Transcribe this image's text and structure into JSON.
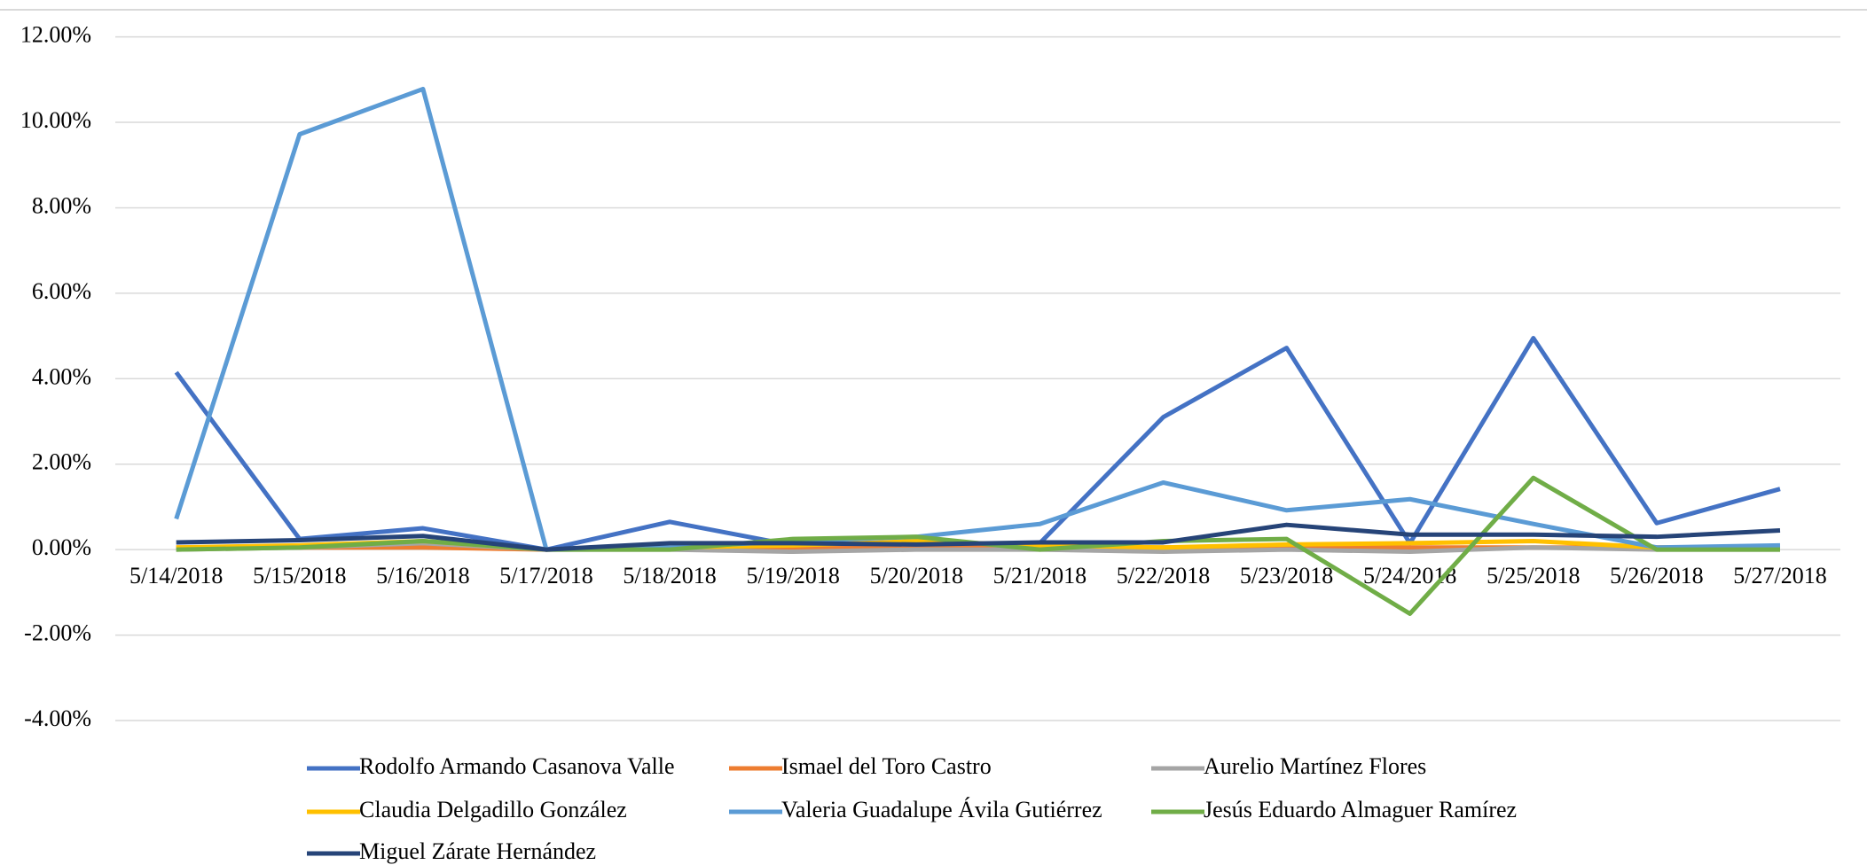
{
  "chart_data": {
    "type": "line",
    "categories": [
      "5/14/2018",
      "5/15/2018",
      "5/16/2018",
      "5/17/2018",
      "5/18/2018",
      "5/19/2018",
      "5/20/2018",
      "5/21/2018",
      "5/22/2018",
      "5/23/2018",
      "5/24/2018",
      "5/25/2018",
      "5/26/2018",
      "5/27/2018"
    ],
    "series": [
      {
        "name": "Rodolfo Armando Casanova Valle",
        "color": "#4472c4",
        "values": [
          4.15,
          0.25,
          0.5,
          0,
          0.65,
          0.1,
          0.1,
          0.15,
          3.1,
          4.72,
          0.15,
          4.95,
          0.62,
          1.42
        ]
      },
      {
        "name": "Ismael del Toro Castro",
        "color": "#ed7d31",
        "values": [
          0.05,
          0.05,
          0.05,
          0,
          0.05,
          0.05,
          0.05,
          0.05,
          0.05,
          0.05,
          0.05,
          0.05,
          0.05,
          0.05
        ]
      },
      {
        "name": "Aurelio Martínez Flores",
        "color": "#a5a5a5",
        "values": [
          0,
          0.05,
          0.15,
          0,
          0,
          -0.05,
          0,
          0,
          -0.05,
          0,
          -0.05,
          0.05,
          0,
          0
        ]
      },
      {
        "name": "Claudia Delgadillo González",
        "color": "#ffc000",
        "values": [
          0.05,
          0.1,
          0.2,
          0,
          0.05,
          0.1,
          0.2,
          0.1,
          0.05,
          0.12,
          0.15,
          0.2,
          0.05,
          0.05
        ]
      },
      {
        "name": "Valeria Guadalupe Ávila Gutiérrez",
        "color": "#5b9bd5",
        "values": [
          0.72,
          9.72,
          10.78,
          0,
          0.05,
          0.2,
          0.3,
          0.6,
          1.57,
          0.92,
          1.18,
          0.6,
          0.05,
          0.1
        ]
      },
      {
        "name": "Jesús Eduardo Almaguer Ramírez",
        "color": "#70ad47",
        "values": [
          0,
          0.05,
          0.2,
          0,
          0,
          0.25,
          0.3,
          0,
          0.2,
          0.25,
          -1.5,
          1.68,
          0,
          0
        ]
      },
      {
        "name": "Miguel Zárate Hernández",
        "color": "#264478",
        "values": [
          0.17,
          0.22,
          0.32,
          0,
          0.15,
          0.15,
          0.12,
          0.17,
          0.17,
          0.58,
          0.35,
          0.35,
          0.3,
          0.45
        ]
      }
    ],
    "ylim": [
      -4,
      12
    ],
    "yticks": [
      {
        "value": -4,
        "label": "-4.00%"
      },
      {
        "value": -2,
        "label": "-2.00%"
      },
      {
        "value": 0,
        "label": "0.00%"
      },
      {
        "value": 2,
        "label": "2.00%"
      },
      {
        "value": 4,
        "label": "4.00%"
      },
      {
        "value": 6,
        "label": "6.00%"
      },
      {
        "value": 8,
        "label": "8.00%"
      },
      {
        "value": 10,
        "label": "10.00%"
      },
      {
        "value": 12,
        "label": "12.00%"
      }
    ],
    "grid": true
  }
}
